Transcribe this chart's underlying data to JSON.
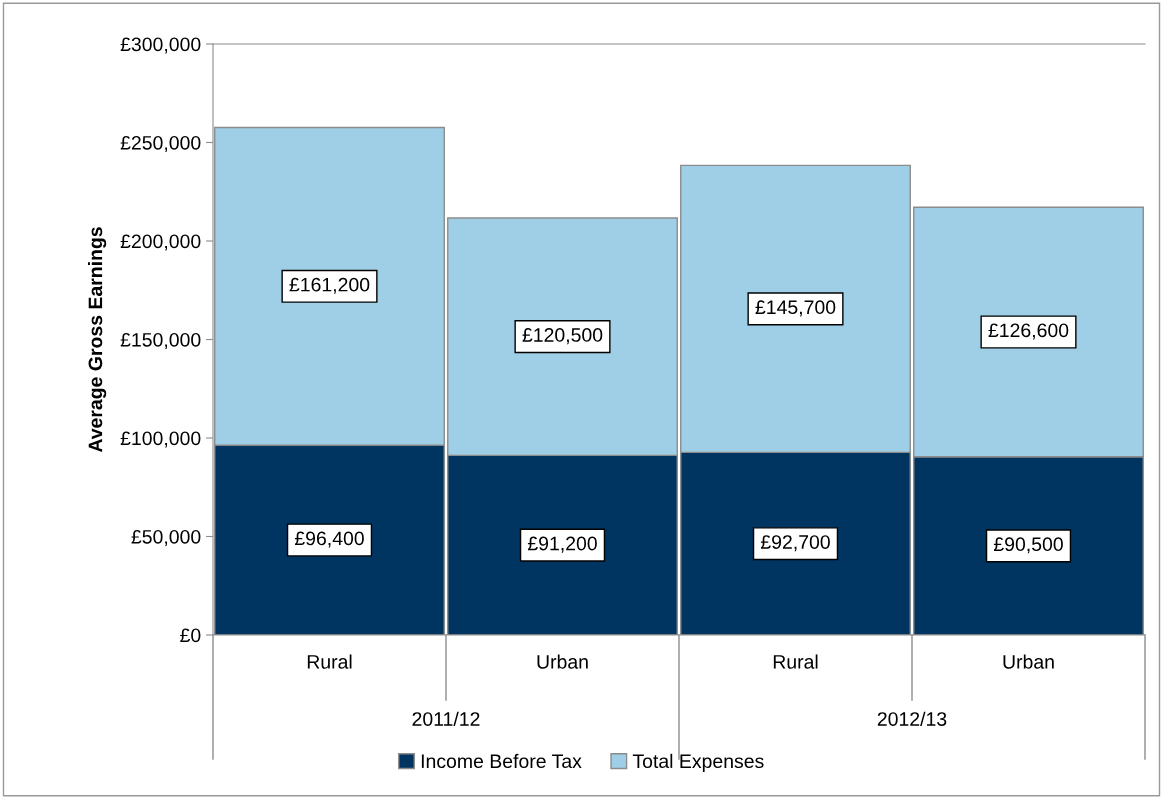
{
  "chart_data": {
    "type": "bar",
    "stacked": true,
    "ylabel": "Average Gross Earnings",
    "categories": [
      "Rural",
      "Urban",
      "Rural",
      "Urban"
    ],
    "series": [
      {
        "name": "Income Before Tax",
        "color": "#003461",
        "values": [
          96400,
          91200,
          92700,
          90500
        ],
        "value_labels": [
          "£96,400",
          "£91,200",
          "£92,700",
          "£90,500"
        ]
      },
      {
        "name": "Total Expenses",
        "color": "#9fcfe7",
        "values": [
          161200,
          120500,
          145700,
          126600
        ],
        "value_labels": [
          "£161,200",
          "£120,500",
          "£145,700",
          "£126,600"
        ]
      }
    ],
    "ylim": [
      0,
      300000
    ],
    "yticks": [
      {
        "value": 0,
        "label": "£0"
      },
      {
        "value": 50000,
        "label": "£50,000"
      },
      {
        "value": 100000,
        "label": "£100,000"
      },
      {
        "value": 150000,
        "label": "£150,000"
      },
      {
        "value": 200000,
        "label": "£200,000"
      },
      {
        "value": 250000,
        "label": "£250,000"
      },
      {
        "value": 300000,
        "label": "£300,000"
      }
    ],
    "annotations": [
      "2011/12",
      "2012/13"
    ],
    "grid": false,
    "legend": "bottom"
  }
}
